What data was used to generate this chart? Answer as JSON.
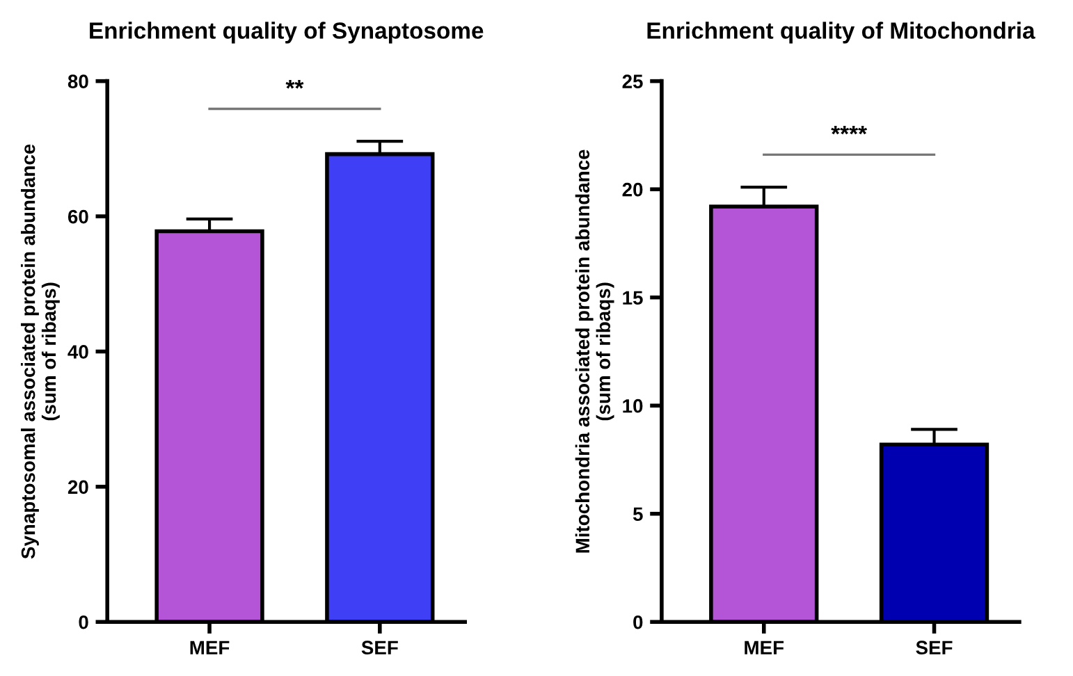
{
  "chart_data": [
    {
      "type": "bar",
      "title": "Enrichment quality of Synaptosome",
      "ylabel": "Synaptosomal associated protein abundance\n(sum of ribaqs)",
      "categories": [
        "MEF",
        "SEF"
      ],
      "values": [
        57.8,
        69.2
      ],
      "errors": [
        1.8,
        1.9
      ],
      "colors": [
        "#b455d8",
        "#3f3ff5"
      ],
      "ylim": [
        0,
        80
      ],
      "yticks": [
        0,
        20,
        40,
        60,
        80
      ],
      "annotations": [
        "**"
      ],
      "grid": false
    },
    {
      "type": "bar",
      "title": "Enrichment quality of Mitochondria",
      "ylabel": "Mitochondria associated protein abundance\n(sum of ribaqs)",
      "categories": [
        "MEF",
        "SEF"
      ],
      "values": [
        19.2,
        8.2
      ],
      "errors": [
        0.9,
        0.7
      ],
      "colors": [
        "#b455d8",
        "#0000b0"
      ],
      "ylim": [
        0,
        25
      ],
      "yticks": [
        0,
        5,
        10,
        15,
        20,
        25
      ],
      "annotations": [
        "****"
      ],
      "grid": false
    }
  ]
}
